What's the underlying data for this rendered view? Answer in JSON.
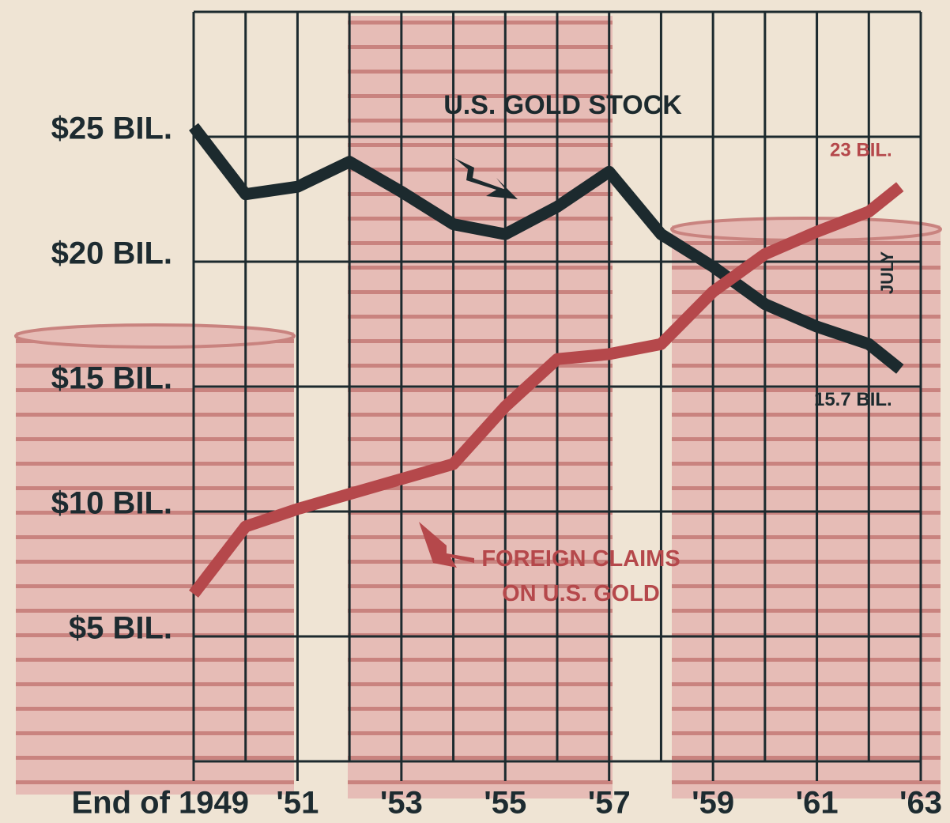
{
  "chart_data": {
    "type": "line",
    "xlim": [
      1949,
      1963
    ],
    "xticks": [
      {
        "value": 1949,
        "label": "End of 1949"
      },
      {
        "value": 1951,
        "label": "'51"
      },
      {
        "value": 1953,
        "label": "'53"
      },
      {
        "value": 1955,
        "label": "'55"
      },
      {
        "value": 1957,
        "label": "'57"
      },
      {
        "value": 1959,
        "label": "'59"
      },
      {
        "value": 1961,
        "label": "'61"
      },
      {
        "value": 1963,
        "label": "'63"
      }
    ],
    "xminor": [
      1950,
      1952,
      1954,
      1956,
      1958,
      1960,
      1962
    ],
    "ylim": [
      0,
      30
    ],
    "yticks": [
      {
        "value": 5,
        "label": "$5 BIL."
      },
      {
        "value": 10,
        "label": "$10 BIL."
      },
      {
        "value": 15,
        "label": "$15 BIL."
      },
      {
        "value": 20,
        "label": "$20 BIL."
      },
      {
        "value": 25,
        "label": "$25 BIL."
      }
    ],
    "grid": true,
    "x": [
      1949,
      1950,
      1951,
      1952,
      1953,
      1954,
      1955,
      1956,
      1957,
      1958,
      1959,
      1960,
      1961,
      1962,
      1962.6
    ],
    "series": [
      {
        "name": "U.S. GOLD STOCK",
        "color": "#1c2a2e",
        "values": [
          25.4,
          22.7,
          23.0,
          24.0,
          22.8,
          21.5,
          21.1,
          22.2,
          23.6,
          21.1,
          19.8,
          18.3,
          17.4,
          16.7,
          15.7
        ],
        "value_labels": [
          null,
          null,
          null,
          null,
          null,
          null,
          null,
          null,
          null,
          null,
          null,
          null,
          null,
          null,
          "15.7 BIL."
        ]
      },
      {
        "name": "FOREIGN CLAIMS ON U.S. GOLD",
        "color": "#b5484b",
        "values": [
          6.7,
          9.4,
          10.1,
          10.7,
          11.3,
          11.9,
          14.2,
          16.1,
          16.3,
          16.7,
          18.8,
          20.3,
          21.2,
          22.0,
          23
        ],
        "value_labels": [
          null,
          null,
          null,
          null,
          null,
          null,
          null,
          null,
          null,
          null,
          null,
          null,
          null,
          null,
          "23 BIL."
        ]
      }
    ],
    "annotations": [
      "JULY"
    ]
  }
}
